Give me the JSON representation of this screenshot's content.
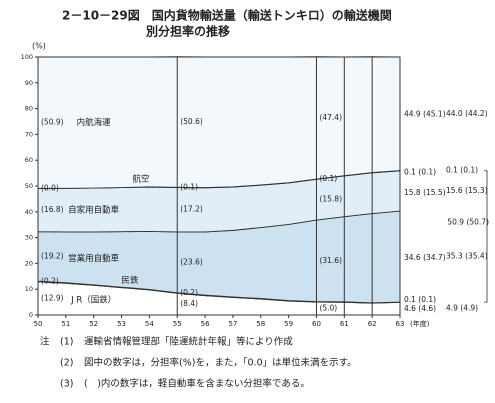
{
  "chart_data": {
    "type": "stacked-area",
    "title_lines": [
      "2－10－29図　国内貨物輸送量（輸送トンキロ）の輸送機関",
      "別分担率の推移"
    ],
    "y_label": "(%)",
    "x_label": "(年度)",
    "categories": [
      "50",
      "51",
      "52",
      "53",
      "54",
      "55",
      "56",
      "57",
      "58",
      "59",
      "60",
      "61",
      "62",
      "63"
    ],
    "ylim": [
      0,
      100
    ],
    "yticks": [
      0,
      10,
      20,
      30,
      40,
      50,
      60,
      70,
      80,
      90,
      100
    ],
    "series": [
      {
        "name": "J R（国鉄）",
        "color": "#ffffff",
        "values": [
          12.9,
          12.3,
          11.5,
          10.6,
          9.7,
          8.4,
          7.5,
          6.8,
          6.2,
          5.4,
          5.0,
          4.9,
          4.6,
          4.9
        ],
        "value_labels": [
          "(12.9)",
          null,
          null,
          null,
          null,
          "(8.4)",
          null,
          null,
          null,
          null,
          "(5.0)",
          null,
          "4.6 (4.6)",
          "4.9 (4.9)"
        ]
      },
      {
        "name": "民鉄",
        "color": "#ffffff",
        "values": [
          0.2,
          0.2,
          0.2,
          0.2,
          0.2,
          0.2,
          0.2,
          0.2,
          0.2,
          0.2,
          0.2,
          0.2,
          0.1,
          0.1
        ],
        "value_labels": [
          "(0.2)",
          null,
          null,
          null,
          null,
          "(0.2)",
          null,
          null,
          null,
          null,
          null,
          null,
          "0.1 (0.1)",
          null
        ]
      },
      {
        "name": "営業用自動車",
        "color": "#cde2f0",
        "values": [
          19.2,
          19.7,
          20.5,
          21.5,
          22.5,
          23.6,
          24.5,
          25.8,
          27.5,
          29.5,
          31.6,
          33.0,
          34.6,
          35.3
        ],
        "value_labels": [
          "(19.2)",
          null,
          null,
          null,
          null,
          "(23.6)",
          null,
          null,
          null,
          null,
          "(31.6)",
          null,
          "34.6 (34.7)",
          "35.3 (35.4)"
        ]
      },
      {
        "name": "自家用自動車",
        "color": "#e2eef7",
        "values": [
          16.8,
          16.9,
          17.0,
          17.1,
          17.2,
          17.2,
          17.1,
          16.8,
          16.4,
          16.1,
          15.8,
          15.8,
          15.8,
          15.6
        ],
        "value_labels": [
          "(16.8)",
          null,
          null,
          null,
          null,
          "(17.2)",
          null,
          null,
          null,
          null,
          "(15.8)",
          null,
          "15.8 (15.5)",
          "15.6 (15.3)"
        ]
      },
      {
        "name": "航空",
        "color": "#eaf3f9",
        "values": [
          0.0,
          0.0,
          0.0,
          0.0,
          0.1,
          0.1,
          0.1,
          0.1,
          0.1,
          0.1,
          0.1,
          0.1,
          0.1,
          0.1
        ],
        "value_labels": [
          "(0.0)",
          null,
          null,
          null,
          null,
          "(0.1)",
          null,
          null,
          null,
          null,
          "(0.1)",
          null,
          "0.1 (0.1)",
          "0.1 (0.1)"
        ]
      },
      {
        "name": "内航海運",
        "color": "#f3f8fc",
        "values": [
          50.9,
          50.9,
          50.8,
          50.6,
          50.3,
          50.6,
          50.6,
          50.3,
          49.6,
          48.7,
          47.4,
          46.0,
          44.9,
          44.0
        ],
        "value_labels": [
          "(50.9)",
          null,
          null,
          null,
          null,
          "(50.6)",
          null,
          null,
          null,
          null,
          "(47.4)",
          null,
          "44.9 (45.1)",
          "44.0 (44.2)"
        ]
      }
    ],
    "annotations": [
      "50.9 (50.7)"
    ]
  },
  "notes_label": "注",
  "notes": [
    {
      "num": "(1)",
      "text": "運輸省情報管理部「陸運統計年報」等により作成"
    },
    {
      "num": "(2)",
      "text": "図中の数字は，分担率(%)を，また，「0.0」は単位未満を示す。"
    },
    {
      "num": "(3)",
      "text": "(　)内の数字は，軽自動車を含まない分担率である。"
    }
  ]
}
